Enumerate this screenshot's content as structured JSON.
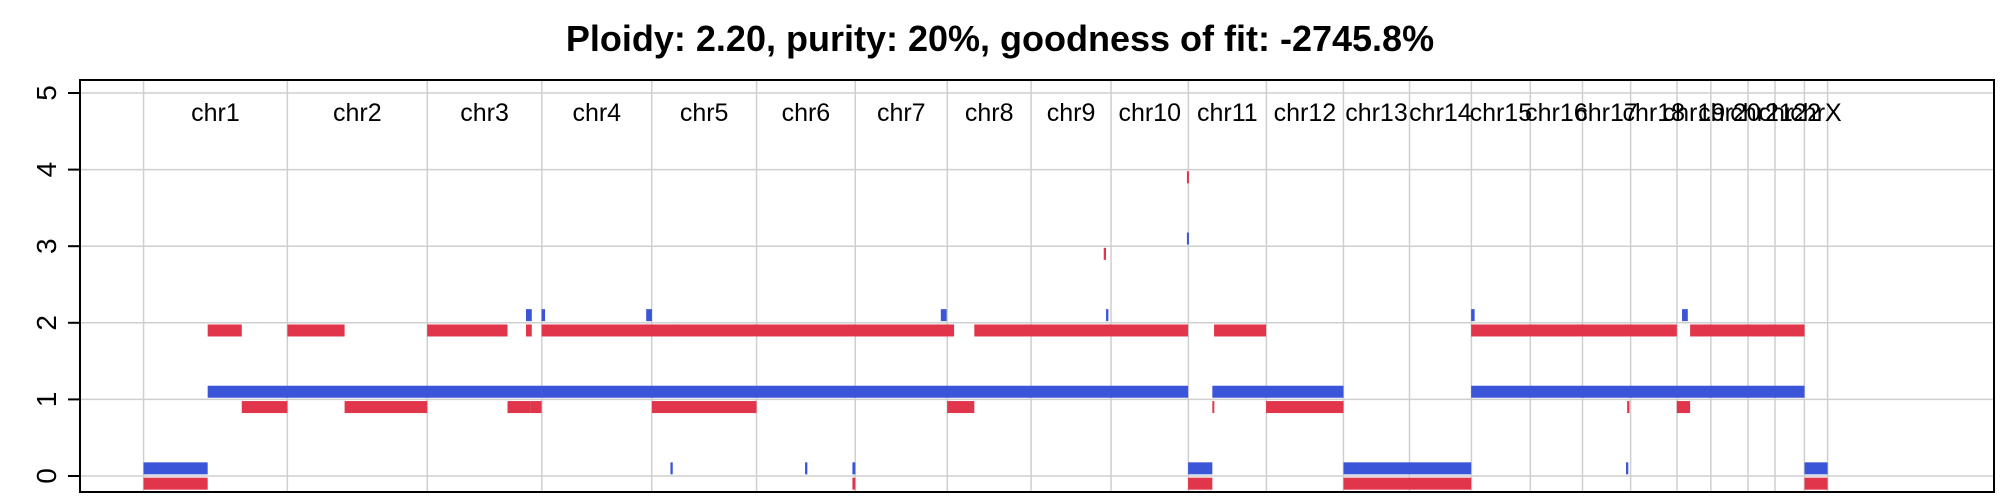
{
  "chart_data": {
    "type": "copy-number segment plot",
    "title": "Ploidy: 2.20, purity: 20%, goodness of fit: -2745.8%",
    "ylim": [
      0,
      5
    ],
    "yticks": [
      "0",
      "1",
      "2",
      "3",
      "4",
      "5"
    ],
    "grid": true,
    "colors": {
      "major": "#3b55d9",
      "minor": "#e0354b",
      "grid": "#cfcfcf"
    },
    "chromosomes": [
      {
        "name": "chr1",
        "start": 0.0,
        "end": 248.9
      },
      {
        "name": "chr2",
        "start": 248.9,
        "end": 491.1
      },
      {
        "name": "chr3",
        "start": 491.1,
        "end": 689.4
      },
      {
        "name": "chr4",
        "start": 689.4,
        "end": 879.6
      },
      {
        "name": "chr5",
        "start": 879.6,
        "end": 1061.1
      },
      {
        "name": "chr6",
        "start": 1061.1,
        "end": 1231.9
      },
      {
        "name": "chr7",
        "start": 1231.9,
        "end": 1391.2
      },
      {
        "name": "chr8",
        "start": 1391.2,
        "end": 1536.3
      },
      {
        "name": "chr9",
        "start": 1536.3,
        "end": 1674.7
      },
      {
        "name": "chr10",
        "start": 1674.7,
        "end": 1808.5
      },
      {
        "name": "chr11",
        "start": 1808.5,
        "end": 1943.6
      },
      {
        "name": "chr12",
        "start": 1943.6,
        "end": 2076.9
      },
      {
        "name": "chr13",
        "start": 2076.9,
        "end": 2191.3
      },
      {
        "name": "chr14",
        "start": 2191.3,
        "end": 2298.4
      },
      {
        "name": "chr15",
        "start": 2298.4,
        "end": 2400.4
      },
      {
        "name": "chr16",
        "start": 2400.4,
        "end": 2490.7
      },
      {
        "name": "chr17",
        "start": 2490.7,
        "end": 2574.0
      },
      {
        "name": "chr18",
        "start": 2574.0,
        "end": 2654.3
      },
      {
        "name": "chr19",
        "start": 2654.3,
        "end": 2712.9
      },
      {
        "name": "chr20",
        "start": 2712.9,
        "end": 2777.3
      },
      {
        "name": "chr21",
        "start": 2777.3,
        "end": 2824.0
      },
      {
        "name": "chr22",
        "start": 2824.0,
        "end": 2874.8
      },
      {
        "name": "chrX",
        "start": 2874.8,
        "end": 2915.0
      }
    ],
    "x_range": [
      -110,
      3203
    ],
    "series": [
      {
        "name": "major",
        "segments": [
          {
            "start": 0,
            "end": 111,
            "y": 0.1
          },
          {
            "start": 111,
            "end": 689,
            "y": 1.1
          },
          {
            "start": 689,
            "end": 1061,
            "y": 1.1
          },
          {
            "start": 1061,
            "end": 1537,
            "y": 1.1
          },
          {
            "start": 1537,
            "end": 1808,
            "y": 1.1
          },
          {
            "start": 1808,
            "end": 1850,
            "y": 0.1
          },
          {
            "start": 1850,
            "end": 2077,
            "y": 1.1
          },
          {
            "start": 2077,
            "end": 2298,
            "y": 0.1
          },
          {
            "start": 2298,
            "end": 2875,
            "y": 1.1
          },
          {
            "start": 2875,
            "end": 2915,
            "y": 0.1
          },
          {
            "start": 662,
            "end": 672,
            "y": 2.1
          },
          {
            "start": 689,
            "end": 695,
            "y": 2.1
          },
          {
            "start": 870,
            "end": 880,
            "y": 2.1
          },
          {
            "start": 1380,
            "end": 1390,
            "y": 2.1
          },
          {
            "start": 1666,
            "end": 1670,
            "y": 2.1
          },
          {
            "start": 1806,
            "end": 1808,
            "y": 3.1
          },
          {
            "start": 2298,
            "end": 2304,
            "y": 2.1
          },
          {
            "start": 2663,
            "end": 2673,
            "y": 2.1
          },
          {
            "start": 912,
            "end": 916,
            "y": 0.1
          },
          {
            "start": 1145,
            "end": 1149,
            "y": 0.1
          },
          {
            "start": 1227,
            "end": 1232,
            "y": 0.1
          },
          {
            "start": 2566,
            "end": 2570,
            "y": 0.1
          }
        ]
      },
      {
        "name": "minor",
        "segments": [
          {
            "start": 0,
            "end": 111,
            "y": -0.1
          },
          {
            "start": 111,
            "end": 170,
            "y": 1.9
          },
          {
            "start": 170,
            "end": 249,
            "y": 0.9
          },
          {
            "start": 249,
            "end": 348,
            "y": 1.9
          },
          {
            "start": 348,
            "end": 491,
            "y": 0.9
          },
          {
            "start": 491,
            "end": 630,
            "y": 1.9
          },
          {
            "start": 630,
            "end": 670,
            "y": 0.9
          },
          {
            "start": 662,
            "end": 672,
            "y": 1.9
          },
          {
            "start": 670,
            "end": 689,
            "y": 0.9
          },
          {
            "start": 689,
            "end": 1061,
            "y": 1.9
          },
          {
            "start": 868,
            "end": 880,
            "y": 1.9
          },
          {
            "start": 880,
            "end": 1061,
            "y": 0.9
          },
          {
            "start": 915,
            "end": 919,
            "y": 1.9
          },
          {
            "start": 1061,
            "end": 1403,
            "y": 1.9
          },
          {
            "start": 1391,
            "end": 1438,
            "y": 0.9
          },
          {
            "start": 1438,
            "end": 1808,
            "y": 1.9
          },
          {
            "start": 1662,
            "end": 1666,
            "y": 2.9
          },
          {
            "start": 1806,
            "end": 1808,
            "y": 3.9
          },
          {
            "start": 1808,
            "end": 1850,
            "y": -0.1
          },
          {
            "start": 1850,
            "end": 1853,
            "y": 0.9
          },
          {
            "start": 1853,
            "end": 1943,
            "y": 1.9
          },
          {
            "start": 1943,
            "end": 2077,
            "y": 0.9
          },
          {
            "start": 2077,
            "end": 2298,
            "y": -0.1
          },
          {
            "start": 2298,
            "end": 2654,
            "y": 1.9
          },
          {
            "start": 2568,
            "end": 2572,
            "y": 0.9
          },
          {
            "start": 2654,
            "end": 2677,
            "y": 0.9
          },
          {
            "start": 2677,
            "end": 2875,
            "y": 1.9
          },
          {
            "start": 1227,
            "end": 1232,
            "y": -0.1
          },
          {
            "start": 2875,
            "end": 2915,
            "y": -0.1
          }
        ]
      }
    ]
  }
}
